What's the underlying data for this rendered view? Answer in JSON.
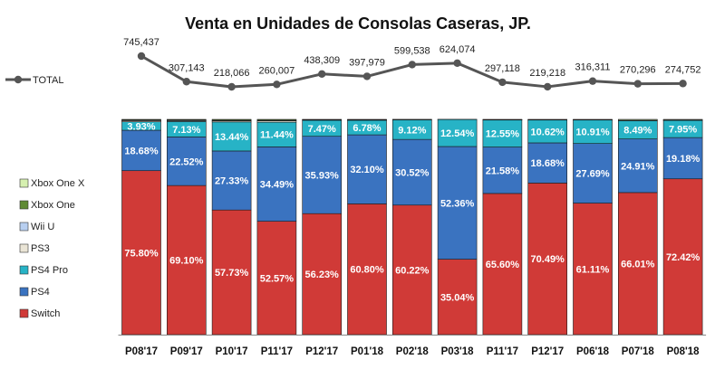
{
  "chart_data": [
    {
      "type": "line",
      "title": "Venta en Unidades de Consolas Caseras, JP.",
      "series": [
        {
          "name": "TOTAL",
          "color": "#555555",
          "values": [
            745437,
            307143,
            218066,
            260007,
            438309,
            397979,
            599538,
            624074,
            297118,
            219218,
            316311,
            270296,
            274752
          ],
          "labels": [
            "745,437",
            "307,143",
            "218,066",
            "260,007",
            "438,309",
            "397,979",
            "599,538",
            "624,074",
            "297,118",
            "219,218",
            "316,311",
            "270,296",
            "274,752"
          ]
        }
      ]
    },
    {
      "type": "bar",
      "stacked": true,
      "percent": true,
      "categories": [
        "P08'17",
        "P09'17",
        "P10'17",
        "P11'17",
        "P12'17",
        "P01'18",
        "P02'18",
        "P03'18",
        "P11'17",
        "P12'17",
        "P06'18",
        "P07'18",
        "P08'18"
      ],
      "ylim": [
        0,
        100
      ],
      "series": [
        {
          "name": "Switch",
          "color": "#d03a37",
          "values": [
            75.8,
            69.1,
            57.73,
            52.57,
            56.23,
            60.8,
            60.22,
            35.04,
            65.6,
            70.49,
            61.11,
            66.01,
            72.42
          ],
          "labels": [
            "75.80%",
            "69.10%",
            "57.73%",
            "52.57%",
            "56.23%",
            "60.80%",
            "60.22%",
            "35.04%",
            "65.60%",
            "70.49%",
            "61.11%",
            "66.01%",
            "72.42%"
          ]
        },
        {
          "name": "PS4",
          "color": "#3a73c0",
          "values": [
            18.68,
            22.52,
            27.33,
            34.49,
            35.93,
            32.1,
            30.52,
            52.36,
            21.58,
            18.68,
            27.69,
            24.91,
            19.18
          ],
          "labels": [
            "18.68%",
            "22.52%",
            "27.33%",
            "34.49%",
            "35.93%",
            "32.10%",
            "30.52%",
            "52.36%",
            "21.58%",
            "18.68%",
            "27.69%",
            "24.91%",
            "19.18%"
          ]
        },
        {
          "name": "PS4 Pro",
          "color": "#27b3c6",
          "values": [
            3.93,
            7.13,
            13.44,
            11.44,
            7.47,
            6.78,
            9.12,
            12.54,
            12.55,
            10.62,
            10.91,
            8.49,
            7.95
          ],
          "labels": [
            "3.93%",
            "7.13%",
            "13.44%",
            "11.44%",
            "7.47%",
            "6.78%",
            "9.12%",
            "12.54%",
            "12.55%",
            "10.62%",
            "10.91%",
            "8.49%",
            "7.95%"
          ]
        },
        {
          "name": "PS3",
          "color": "#eae5d6",
          "values": [
            0.5,
            0.4,
            0.5,
            0.6,
            0.1,
            0.1,
            0.05,
            0.03,
            0.1,
            0.1,
            0.1,
            0.1,
            0.1
          ],
          "labels": []
        },
        {
          "name": "Wii U",
          "color": "#b8cff0",
          "values": [
            0.3,
            0.3,
            0.3,
            0.3,
            0.1,
            0.1,
            0.05,
            0.03,
            0.05,
            0.05,
            0.05,
            0.05,
            0.05
          ],
          "labels": []
        },
        {
          "name": "Xbox One",
          "color": "#5f8a34",
          "values": [
            0.3,
            0.3,
            0.4,
            0.4,
            0.1,
            0.1,
            0.04,
            0.0,
            0.05,
            0.05,
            0.05,
            0.05,
            0.05
          ],
          "labels": []
        },
        {
          "name": "Xbox One X",
          "color": "#d6f0b0",
          "values": [
            0.0,
            0.0,
            0.0,
            0.0,
            0.1,
            0.1,
            0.05,
            0.0,
            0.1,
            0.1,
            0.1,
            0.4,
            0.3
          ],
          "labels": []
        }
      ],
      "legend": [
        "Xbox One X",
        "Xbox One",
        "Wii U",
        "PS3",
        "PS4 Pro",
        "PS4",
        "Switch"
      ],
      "legend_position": "left"
    }
  ]
}
